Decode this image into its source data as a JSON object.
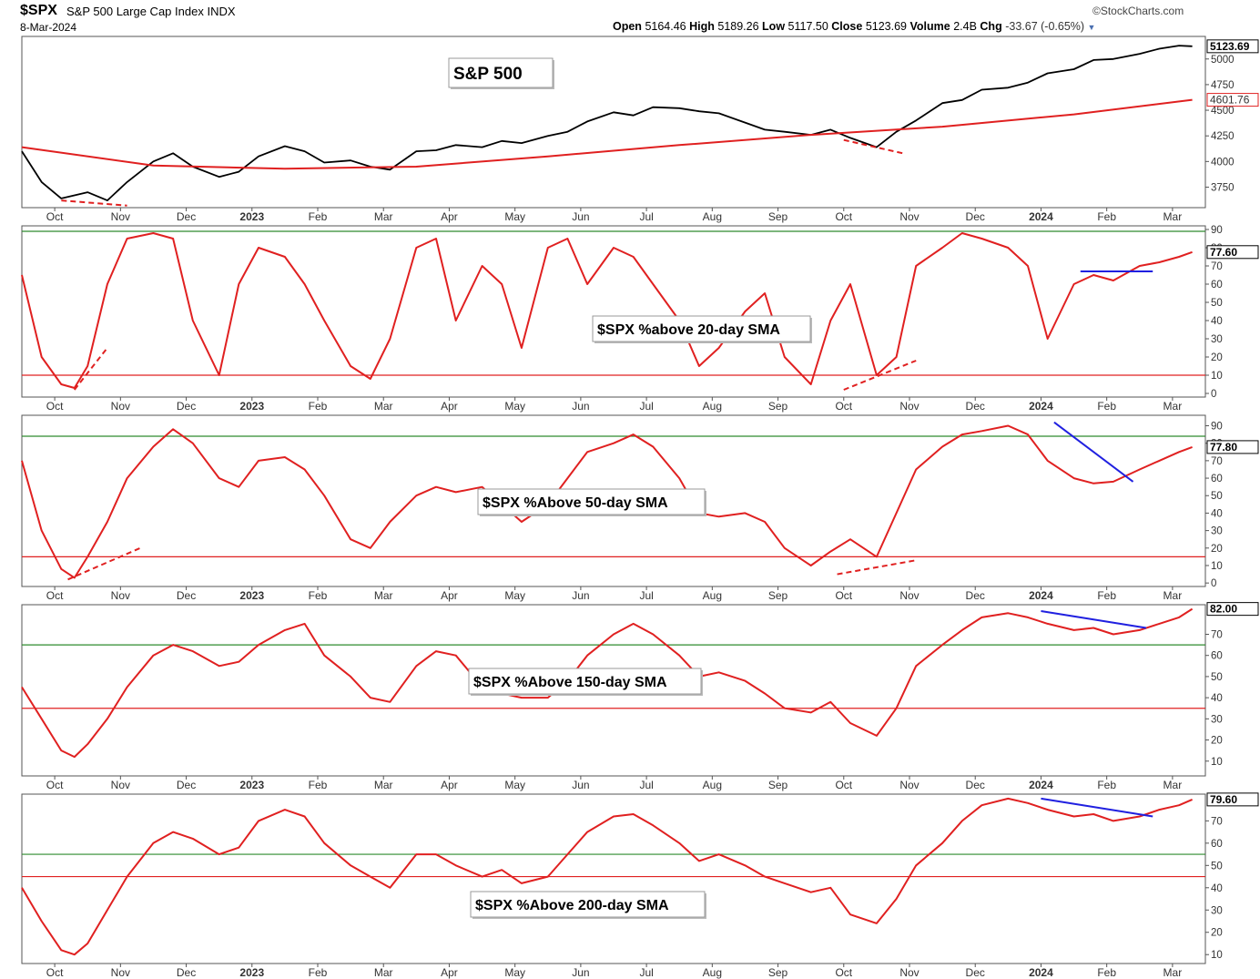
{
  "header": {
    "symbol": "$SPX",
    "name": "S&P 500 Large Cap Index",
    "exchange": "INDX",
    "date": "8-Mar-2024",
    "brand": "©StockCharts.com",
    "open_label": "Open",
    "open": "5164.46",
    "high_label": "High",
    "high": "5189.26",
    "low_label": "Low",
    "low": "5117.50",
    "close_label": "Close",
    "close": "5123.69",
    "volume_label": "Volume",
    "volume": "2.4B",
    "chg_label": "Chg",
    "chg": "-33.67 (-0.65%)",
    "chg_icon": "triangle-down-icon"
  },
  "x_axis": {
    "months": [
      "Oct",
      "Nov",
      "Dec",
      "2023",
      "Feb",
      "Mar",
      "Apr",
      "May",
      "Jun",
      "Jul",
      "Aug",
      "Sep",
      "Oct",
      "Nov",
      "Dec",
      "2024",
      "Feb",
      "Mar"
    ],
    "bold": [
      false,
      false,
      false,
      true,
      false,
      false,
      false,
      false,
      false,
      false,
      false,
      false,
      false,
      false,
      false,
      true,
      false,
      false
    ],
    "month_index": [
      0.5,
      1.5,
      2.5,
      3.5,
      4.5,
      5.5,
      6.5,
      7.5,
      8.5,
      9.5,
      10.5,
      11.5,
      12.5,
      13.5,
      14.5,
      15.5,
      16.5,
      17.5
    ]
  },
  "colors": {
    "price": "#000000",
    "ma": "#e02020",
    "upper": "#2e8b2e",
    "lower": "#e02020",
    "trend_red": "#e02020",
    "trend_blue": "#2020e0"
  },
  "chart_data": [
    {
      "type": "line",
      "label": "S&P 500",
      "ylim": [
        3550,
        5220
      ],
      "yticks": [
        3750,
        4000,
        4250,
        4500,
        4750,
        5000
      ],
      "last_value": "5123.69",
      "ma_value": "4601.76",
      "series": [
        {
          "name": "$SPX",
          "x": [
            0,
            0.3,
            0.6,
            1,
            1.3,
            1.6,
            2,
            2.3,
            2.6,
            3,
            3.3,
            3.6,
            4,
            4.3,
            4.6,
            5,
            5.3,
            5.6,
            6,
            6.3,
            6.6,
            7,
            7.3,
            7.6,
            8,
            8.3,
            8.6,
            9,
            9.3,
            9.6,
            10,
            10.3,
            10.6,
            11,
            11.3,
            11.6,
            12,
            12.3,
            12.6,
            13,
            13.3,
            13.6,
            14,
            14.3,
            14.6,
            15,
            15.3,
            15.6,
            16,
            16.3,
            16.6,
            17,
            17.3,
            17.6,
            17.8
          ],
          "y": [
            4100,
            3800,
            3640,
            3700,
            3620,
            3800,
            4000,
            4080,
            3950,
            3850,
            3900,
            4050,
            4150,
            4100,
            3990,
            4010,
            3950,
            3920,
            4100,
            4110,
            4160,
            4140,
            4200,
            4180,
            4250,
            4290,
            4390,
            4480,
            4450,
            4530,
            4520,
            4490,
            4470,
            4380,
            4310,
            4290,
            4260,
            4310,
            4230,
            4140,
            4290,
            4400,
            4570,
            4600,
            4700,
            4720,
            4770,
            4860,
            4900,
            4990,
            5000,
            5050,
            5100,
            5130,
            5124
          ]
        },
        {
          "name": "200-day MA",
          "x": [
            0,
            2,
            4,
            6,
            8,
            10,
            12,
            14,
            16,
            17.8
          ],
          "y": [
            4140,
            3960,
            3930,
            3950,
            4050,
            4160,
            4260,
            4340,
            4460,
            4602
          ]
        }
      ],
      "trendlines": [
        {
          "color": "red",
          "dash": true,
          "x": [
            0.6,
            1.6
          ],
          "y": [
            3620,
            3570
          ]
        },
        {
          "color": "red",
          "dash": true,
          "x": [
            12.5,
            13.4
          ],
          "y": [
            4210,
            4080
          ]
        }
      ]
    },
    {
      "type": "line",
      "label": "$SPX %above 20-day SMA",
      "ylim": [
        -2,
        92
      ],
      "yticks": [
        0,
        10,
        20,
        30,
        40,
        50,
        60,
        70,
        80,
        90
      ],
      "upper_line": 89,
      "lower_line": 10,
      "last_value": "77.60",
      "series": [
        {
          "name": "$SPX %above 20-day SMA",
          "x": [
            0,
            0.3,
            0.6,
            0.8,
            1,
            1.3,
            1.6,
            2,
            2.3,
            2.6,
            3,
            3.3,
            3.6,
            4,
            4.3,
            4.6,
            5,
            5.3,
            5.6,
            6,
            6.3,
            6.6,
            7,
            7.3,
            7.6,
            8,
            8.3,
            8.6,
            9,
            9.3,
            9.6,
            10,
            10.3,
            10.6,
            11,
            11.3,
            11.6,
            12,
            12.3,
            12.6,
            13,
            13.3,
            13.6,
            14,
            14.3,
            14.6,
            15,
            15.3,
            15.6,
            16,
            16.3,
            16.6,
            17,
            17.3,
            17.6,
            17.8
          ],
          "y": [
            65,
            20,
            5,
            3,
            15,
            60,
            85,
            88,
            85,
            40,
            10,
            60,
            80,
            75,
            60,
            40,
            15,
            8,
            30,
            80,
            85,
            40,
            70,
            60,
            25,
            80,
            85,
            60,
            80,
            75,
            60,
            40,
            15,
            25,
            45,
            55,
            20,
            5,
            40,
            60,
            10,
            20,
            70,
            80,
            88,
            85,
            80,
            70,
            30,
            60,
            65,
            62,
            70,
            72,
            75,
            77.6
          ]
        }
      ],
      "trendlines": [
        {
          "color": "red",
          "dash": true,
          "x": [
            0.8,
            1.3
          ],
          "y": [
            2,
            25
          ]
        },
        {
          "color": "red",
          "dash": true,
          "x": [
            12.5,
            13.6
          ],
          "y": [
            2,
            18
          ]
        },
        {
          "color": "blue",
          "dash": false,
          "x": [
            16.1,
            17.2
          ],
          "y": [
            67,
            67
          ]
        }
      ]
    },
    {
      "type": "line",
      "label": "$SPX %Above 50-day SMA",
      "ylim": [
        -2,
        96
      ],
      "yticks": [
        0,
        10,
        20,
        30,
        40,
        50,
        60,
        70,
        80,
        90
      ],
      "upper_line": 84,
      "lower_line": 15,
      "last_value": "77.80",
      "series": [
        {
          "name": "$SPX %Above 50-day SMA",
          "x": [
            0,
            0.3,
            0.6,
            0.8,
            1,
            1.3,
            1.6,
            2,
            2.3,
            2.6,
            3,
            3.3,
            3.6,
            4,
            4.3,
            4.6,
            5,
            5.3,
            5.6,
            6,
            6.3,
            6.6,
            7,
            7.3,
            7.6,
            8,
            8.3,
            8.6,
            9,
            9.3,
            9.6,
            10,
            10.3,
            10.6,
            11,
            11.3,
            11.6,
            12,
            12.3,
            12.6,
            13,
            13.3,
            13.6,
            14,
            14.3,
            14.6,
            15,
            15.3,
            15.6,
            16,
            16.3,
            16.6,
            17,
            17.3,
            17.6,
            17.8
          ],
          "y": [
            70,
            30,
            8,
            3,
            15,
            35,
            60,
            78,
            88,
            80,
            60,
            55,
            70,
            72,
            65,
            50,
            25,
            20,
            35,
            50,
            55,
            52,
            55,
            45,
            35,
            45,
            60,
            75,
            80,
            85,
            78,
            60,
            40,
            38,
            40,
            35,
            20,
            10,
            18,
            25,
            15,
            40,
            65,
            78,
            85,
            87,
            90,
            85,
            70,
            60,
            57,
            58,
            65,
            70,
            75,
            77.8
          ]
        }
      ],
      "trendlines": [
        {
          "color": "red",
          "dash": true,
          "x": [
            0.7,
            1.8
          ],
          "y": [
            2,
            20
          ]
        },
        {
          "color": "red",
          "dash": true,
          "x": [
            12.4,
            13.6
          ],
          "y": [
            5,
            13
          ]
        },
        {
          "color": "blue",
          "dash": false,
          "x": [
            15.7,
            16.9
          ],
          "y": [
            92,
            58
          ]
        }
      ]
    },
    {
      "type": "line",
      "label": "$SPX %Above 150-day SMA",
      "ylim": [
        3,
        84
      ],
      "yticks": [
        10,
        20,
        30,
        40,
        50,
        60,
        70
      ],
      "upper_line": 65,
      "lower_line": 35,
      "last_value": "82.00",
      "series": [
        {
          "name": "$SPX %Above 150-day SMA",
          "x": [
            0,
            0.3,
            0.6,
            0.8,
            1,
            1.3,
            1.6,
            2,
            2.3,
            2.6,
            3,
            3.3,
            3.6,
            4,
            4.3,
            4.6,
            5,
            5.3,
            5.6,
            6,
            6.3,
            6.6,
            7,
            7.3,
            7.6,
            8,
            8.3,
            8.6,
            9,
            9.3,
            9.6,
            10,
            10.3,
            10.6,
            11,
            11.3,
            11.6,
            12,
            12.3,
            12.6,
            13,
            13.3,
            13.6,
            14,
            14.3,
            14.6,
            15,
            15.3,
            15.6,
            16,
            16.3,
            16.6,
            17,
            17.3,
            17.6,
            17.8
          ],
          "y": [
            45,
            30,
            15,
            12,
            18,
            30,
            45,
            60,
            65,
            62,
            55,
            57,
            65,
            72,
            75,
            60,
            50,
            40,
            38,
            55,
            62,
            60,
            45,
            42,
            40,
            40,
            48,
            60,
            70,
            75,
            70,
            60,
            50,
            52,
            48,
            42,
            35,
            33,
            38,
            28,
            22,
            35,
            55,
            65,
            72,
            78,
            80,
            78,
            75,
            72,
            73,
            70,
            72,
            75,
            78,
            82
          ]
        }
      ],
      "trendlines": [
        {
          "color": "blue",
          "dash": false,
          "x": [
            15.5,
            17.1
          ],
          "y": [
            81,
            73
          ]
        }
      ]
    },
    {
      "type": "line",
      "label": "$SPX %Above 200-day SMA",
      "ylim": [
        6,
        82
      ],
      "yticks": [
        10,
        20,
        30,
        40,
        50,
        60,
        70
      ],
      "upper_line": 55,
      "lower_line": 45,
      "last_value": "79.60",
      "series": [
        {
          "name": "$SPX %Above 200-day SMA",
          "x": [
            0,
            0.3,
            0.6,
            0.8,
            1,
            1.3,
            1.6,
            2,
            2.3,
            2.6,
            3,
            3.3,
            3.6,
            4,
            4.3,
            4.6,
            5,
            5.3,
            5.6,
            6,
            6.3,
            6.6,
            7,
            7.3,
            7.6,
            8,
            8.3,
            8.6,
            9,
            9.3,
            9.6,
            10,
            10.3,
            10.6,
            11,
            11.3,
            11.6,
            12,
            12.3,
            12.6,
            13,
            13.3,
            13.6,
            14,
            14.3,
            14.6,
            15,
            15.3,
            15.6,
            16,
            16.3,
            16.6,
            17,
            17.3,
            17.6,
            17.8
          ],
          "y": [
            40,
            25,
            12,
            10,
            15,
            30,
            45,
            60,
            65,
            62,
            55,
            58,
            70,
            75,
            72,
            60,
            50,
            45,
            40,
            55,
            55,
            50,
            45,
            48,
            42,
            45,
            55,
            65,
            72,
            73,
            68,
            60,
            52,
            55,
            50,
            45,
            42,
            38,
            40,
            28,
            24,
            35,
            50,
            60,
            70,
            77,
            80,
            78,
            75,
            72,
            73,
            70,
            72,
            75,
            77,
            79.6
          ]
        }
      ],
      "trendlines": [
        {
          "color": "blue",
          "dash": false,
          "x": [
            15.5,
            17.2
          ],
          "y": [
            80,
            72
          ]
        }
      ]
    }
  ]
}
